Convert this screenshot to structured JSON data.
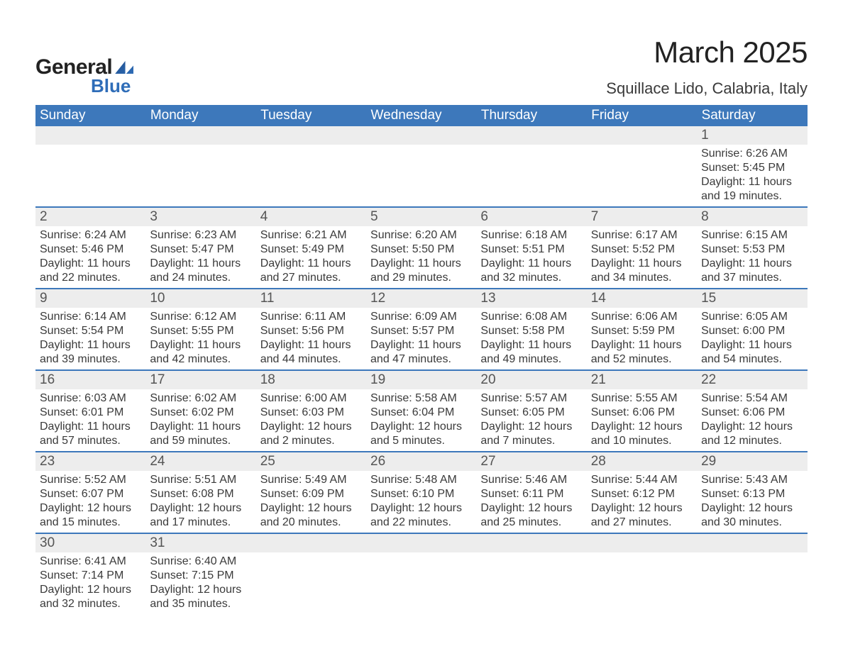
{
  "logo": {
    "text_top": "General",
    "text_bottom": "Blue"
  },
  "header": {
    "month_title": "March 2025",
    "location": "Squillace Lido, Calabria, Italy"
  },
  "styling": {
    "header_bg": "#3d78bb",
    "header_text": "#ffffff",
    "daynum_bg": "#ededed",
    "daynum_text": "#555555",
    "body_text": "#3a3a3a",
    "row_border": "#3d78bb",
    "page_bg": "#ffffff",
    "month_title_fontsize": 42,
    "location_fontsize": 22,
    "weekday_fontsize": 19,
    "daynum_fontsize": 19,
    "detail_fontsize": 16,
    "columns": 7
  },
  "weekdays": [
    "Sunday",
    "Monday",
    "Tuesday",
    "Wednesday",
    "Thursday",
    "Friday",
    "Saturday"
  ],
  "weeks": [
    [
      null,
      null,
      null,
      null,
      null,
      null,
      {
        "n": "1",
        "sunrise": "6:26 AM",
        "sunset": "5:45 PM",
        "daylight": "11 hours and 19 minutes."
      }
    ],
    [
      {
        "n": "2",
        "sunrise": "6:24 AM",
        "sunset": "5:46 PM",
        "daylight": "11 hours and 22 minutes."
      },
      {
        "n": "3",
        "sunrise": "6:23 AM",
        "sunset": "5:47 PM",
        "daylight": "11 hours and 24 minutes."
      },
      {
        "n": "4",
        "sunrise": "6:21 AM",
        "sunset": "5:49 PM",
        "daylight": "11 hours and 27 minutes."
      },
      {
        "n": "5",
        "sunrise": "6:20 AM",
        "sunset": "5:50 PM",
        "daylight": "11 hours and 29 minutes."
      },
      {
        "n": "6",
        "sunrise": "6:18 AM",
        "sunset": "5:51 PM",
        "daylight": "11 hours and 32 minutes."
      },
      {
        "n": "7",
        "sunrise": "6:17 AM",
        "sunset": "5:52 PM",
        "daylight": "11 hours and 34 minutes."
      },
      {
        "n": "8",
        "sunrise": "6:15 AM",
        "sunset": "5:53 PM",
        "daylight": "11 hours and 37 minutes."
      }
    ],
    [
      {
        "n": "9",
        "sunrise": "6:14 AM",
        "sunset": "5:54 PM",
        "daylight": "11 hours and 39 minutes."
      },
      {
        "n": "10",
        "sunrise": "6:12 AM",
        "sunset": "5:55 PM",
        "daylight": "11 hours and 42 minutes."
      },
      {
        "n": "11",
        "sunrise": "6:11 AM",
        "sunset": "5:56 PM",
        "daylight": "11 hours and 44 minutes."
      },
      {
        "n": "12",
        "sunrise": "6:09 AM",
        "sunset": "5:57 PM",
        "daylight": "11 hours and 47 minutes."
      },
      {
        "n": "13",
        "sunrise": "6:08 AM",
        "sunset": "5:58 PM",
        "daylight": "11 hours and 49 minutes."
      },
      {
        "n": "14",
        "sunrise": "6:06 AM",
        "sunset": "5:59 PM",
        "daylight": "11 hours and 52 minutes."
      },
      {
        "n": "15",
        "sunrise": "6:05 AM",
        "sunset": "6:00 PM",
        "daylight": "11 hours and 54 minutes."
      }
    ],
    [
      {
        "n": "16",
        "sunrise": "6:03 AM",
        "sunset": "6:01 PM",
        "daylight": "11 hours and 57 minutes."
      },
      {
        "n": "17",
        "sunrise": "6:02 AM",
        "sunset": "6:02 PM",
        "daylight": "11 hours and 59 minutes."
      },
      {
        "n": "18",
        "sunrise": "6:00 AM",
        "sunset": "6:03 PM",
        "daylight": "12 hours and 2 minutes."
      },
      {
        "n": "19",
        "sunrise": "5:58 AM",
        "sunset": "6:04 PM",
        "daylight": "12 hours and 5 minutes."
      },
      {
        "n": "20",
        "sunrise": "5:57 AM",
        "sunset": "6:05 PM",
        "daylight": "12 hours and 7 minutes."
      },
      {
        "n": "21",
        "sunrise": "5:55 AM",
        "sunset": "6:06 PM",
        "daylight": "12 hours and 10 minutes."
      },
      {
        "n": "22",
        "sunrise": "5:54 AM",
        "sunset": "6:06 PM",
        "daylight": "12 hours and 12 minutes."
      }
    ],
    [
      {
        "n": "23",
        "sunrise": "5:52 AM",
        "sunset": "6:07 PM",
        "daylight": "12 hours and 15 minutes."
      },
      {
        "n": "24",
        "sunrise": "5:51 AM",
        "sunset": "6:08 PM",
        "daylight": "12 hours and 17 minutes."
      },
      {
        "n": "25",
        "sunrise": "5:49 AM",
        "sunset": "6:09 PM",
        "daylight": "12 hours and 20 minutes."
      },
      {
        "n": "26",
        "sunrise": "5:48 AM",
        "sunset": "6:10 PM",
        "daylight": "12 hours and 22 minutes."
      },
      {
        "n": "27",
        "sunrise": "5:46 AM",
        "sunset": "6:11 PM",
        "daylight": "12 hours and 25 minutes."
      },
      {
        "n": "28",
        "sunrise": "5:44 AM",
        "sunset": "6:12 PM",
        "daylight": "12 hours and 27 minutes."
      },
      {
        "n": "29",
        "sunrise": "5:43 AM",
        "sunset": "6:13 PM",
        "daylight": "12 hours and 30 minutes."
      }
    ],
    [
      {
        "n": "30",
        "sunrise": "6:41 AM",
        "sunset": "7:14 PM",
        "daylight": "12 hours and 32 minutes."
      },
      {
        "n": "31",
        "sunrise": "6:40 AM",
        "sunset": "7:15 PM",
        "daylight": "12 hours and 35 minutes."
      },
      null,
      null,
      null,
      null,
      null
    ]
  ],
  "labels": {
    "sunrise": "Sunrise:",
    "sunset": "Sunset:",
    "daylight": "Daylight:"
  }
}
